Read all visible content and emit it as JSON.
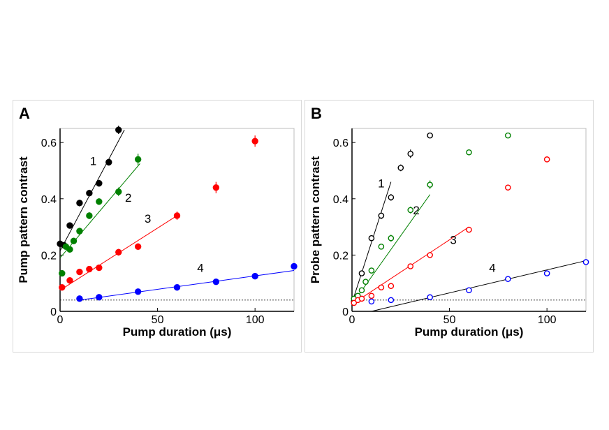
{
  "chart_data": [
    {
      "panel_label": "A",
      "type": "scatter",
      "xlabel": "Pump duration (μs)",
      "ylabel": "Pump pattern contrast",
      "xlim": [
        0,
        120
      ],
      "ylim": [
        0,
        0.65
      ],
      "xticks": [
        "0",
        "50",
        "100"
      ],
      "yticks": [
        "0",
        "0.2",
        "0.4",
        "0.6"
      ],
      "marker": "filled",
      "baseline": 0.04,
      "series": [
        {
          "name": "1",
          "color": "#000000",
          "x": [
            0,
            2,
            5,
            10,
            15,
            20,
            25,
            30
          ],
          "y": [
            0.24,
            0.235,
            0.305,
            0.385,
            0.42,
            0.455,
            0.53,
            0.645
          ],
          "err": [
            0.01,
            0.01,
            0.01,
            0.012,
            0.012,
            0.012,
            0.012,
            0.015
          ],
          "fit": [
            [
              0,
              0.215
            ],
            [
              33,
              0.645
            ]
          ],
          "label_pos": [
            17,
            0.52
          ]
        },
        {
          "name": "2",
          "color": "#008000",
          "x": [
            1,
            3,
            5,
            7,
            10,
            15,
            20,
            30,
            40
          ],
          "y": [
            0.135,
            0.23,
            0.22,
            0.25,
            0.285,
            0.34,
            0.39,
            0.425,
            0.54
          ],
          "err": [
            0.01,
            0.01,
            0.01,
            0.01,
            0.012,
            0.012,
            0.012,
            0.015,
            0.02
          ],
          "fit": [
            [
              0,
              0.19
            ],
            [
              41,
              0.525
            ]
          ],
          "label_pos": [
            35,
            0.39
          ]
        },
        {
          "name": "3",
          "color": "#ff0000",
          "x": [
            1,
            5,
            10,
            15,
            20,
            30,
            40,
            60,
            80,
            100
          ],
          "y": [
            0.085,
            0.11,
            0.14,
            0.15,
            0.155,
            0.21,
            0.23,
            0.34,
            0.44,
            0.605
          ],
          "err": [
            0.01,
            0.01,
            0.01,
            0.01,
            0.01,
            0.012,
            0.012,
            0.015,
            0.02,
            0.02
          ],
          "fit": [
            [
              0,
              0.075
            ],
            [
              60,
              0.34
            ]
          ],
          "label_pos": [
            45,
            0.315
          ]
        },
        {
          "name": "4",
          "color": "#0000ff",
          "x": [
            10,
            20,
            40,
            60,
            80,
            100,
            120
          ],
          "y": [
            0.045,
            0.05,
            0.07,
            0.085,
            0.105,
            0.125,
            0.16
          ],
          "err": [
            0.005,
            0.005,
            0.005,
            0.005,
            0.006,
            0.006,
            0.008
          ],
          "fit": [
            [
              10,
              0.04
            ],
            [
              120,
              0.145
            ]
          ],
          "label_pos": [
            72,
            0.14
          ]
        }
      ]
    },
    {
      "panel_label": "B",
      "type": "scatter",
      "xlabel": "Pump duration (μs)",
      "ylabel": "Probe pattern contrast",
      "xlim": [
        0,
        120
      ],
      "ylim": [
        0,
        0.65
      ],
      "xticks": [
        "0",
        "50",
        "100"
      ],
      "yticks": [
        "0",
        "0.2",
        "0.4",
        "0.6"
      ],
      "marker": "open",
      "baseline": 0.04,
      "series": [
        {
          "name": "1",
          "color": "#000000",
          "x": [
            1,
            2,
            5,
            10,
            15,
            20,
            25,
            30,
            40
          ],
          "y": [
            0.035,
            0.045,
            0.135,
            0.26,
            0.34,
            0.405,
            0.51,
            0.56,
            0.625
          ],
          "err": [
            0.005,
            0.006,
            0.01,
            0.01,
            0.012,
            0.012,
            0.012,
            0.015,
            0.01
          ],
          "fit": [
            [
              0,
              0.03
            ],
            [
              20,
              0.46
            ]
          ],
          "label_pos": [
            15,
            0.44
          ]
        },
        {
          "name": "2",
          "color": "#008000",
          "x": [
            1,
            3,
            5,
            7,
            10,
            15,
            20,
            30,
            40,
            60,
            80
          ],
          "y": [
            0.045,
            0.055,
            0.075,
            0.105,
            0.145,
            0.23,
            0.26,
            0.36,
            0.45,
            0.565,
            0.625
          ],
          "err": [
            0.005,
            0.005,
            0.008,
            0.008,
            0.01,
            0.01,
            0.012,
            0.012,
            0.015,
            0.01,
            0.01
          ],
          "fit": [
            [
              0,
              0.025
            ],
            [
              40,
              0.415
            ]
          ],
          "label_pos": [
            33,
            0.345
          ]
        },
        {
          "name": "3",
          "color": "#ff0000",
          "x": [
            1,
            3,
            5,
            10,
            15,
            20,
            30,
            40,
            60,
            80,
            100
          ],
          "y": [
            0.03,
            0.04,
            0.045,
            0.055,
            0.085,
            0.09,
            0.16,
            0.2,
            0.29,
            0.44,
            0.54
          ],
          "err": [
            0.005,
            0.005,
            0.005,
            0.006,
            0.008,
            0.008,
            0.008,
            0.01,
            0.01,
            0.008,
            0.008
          ],
          "fit": [
            [
              0,
              0.025
            ],
            [
              60,
              0.3
            ]
          ],
          "label_pos": [
            52,
            0.24
          ]
        },
        {
          "name": "4",
          "color": "#0000ff",
          "x": [
            10,
            20,
            40,
            60,
            80,
            100,
            120
          ],
          "y": [
            0.035,
            0.04,
            0.05,
            0.075,
            0.115,
            0.135,
            0.175
          ],
          "err": [
            0.005,
            0.005,
            0.005,
            0.005,
            0.006,
            0.006,
            0.006
          ],
          "fit": [
            [
              10,
              0.0
            ],
            [
              120,
              0.18
            ]
          ],
          "fit_color": "#000000",
          "label_pos": [
            72,
            0.14
          ]
        }
      ]
    }
  ]
}
